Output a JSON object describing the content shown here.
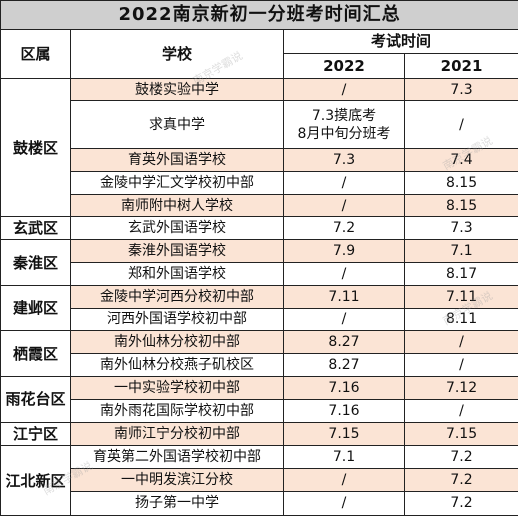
{
  "title": "2022南京新初一分班考时间汇总",
  "headers": {
    "district": "区属",
    "school": "学校",
    "exam_time": "考试时间",
    "year_2022": "2022",
    "year_2021": "2021"
  },
  "districts": {
    "gulou": "鼓楼区",
    "xuanwu": "玄武区",
    "qinhuai": "秦淮区",
    "jianye": "建邺区",
    "qixia": "栖霞区",
    "yuhuatai": "雨花台区",
    "jiangning": "江宁区",
    "jiangbei": "江北新区"
  },
  "rows": [
    {
      "school": "鼓楼实验中学",
      "y2022": "/",
      "y2021": "7.3"
    },
    {
      "school": "求真中学",
      "y2022": "7.3摸底考\n8月中旬分班考",
      "y2021": "/"
    },
    {
      "school": "育英外国语学校",
      "y2022": "7.3",
      "y2021": "7.4"
    },
    {
      "school": "金陵中学汇文学校初中部",
      "y2022": "/",
      "y2021": "8.15"
    },
    {
      "school": "南师附中树人学校",
      "y2022": "/",
      "y2021": "8.15"
    },
    {
      "school": "玄武外国语学校",
      "y2022": "7.2",
      "y2021": "7.3"
    },
    {
      "school": "秦淮外国语学校",
      "y2022": "7.9",
      "y2021": "7.1"
    },
    {
      "school": "郑和外国语学校",
      "y2022": "/",
      "y2021": "8.17"
    },
    {
      "school": "金陵中学河西分校初中部",
      "y2022": "7.11",
      "y2021": "7.11"
    },
    {
      "school": "河西外国语学校初中部",
      "y2022": "/",
      "y2021": "8.11"
    },
    {
      "school": "南外仙林分校初中部",
      "y2022": "8.27",
      "y2021": "/"
    },
    {
      "school": "南外仙林分校燕子矶校区",
      "y2022": "8.27",
      "y2021": "/"
    },
    {
      "school": "一中实验学校初中部",
      "y2022": "7.16",
      "y2021": "7.12"
    },
    {
      "school": "南外雨花国际学校初中部",
      "y2022": "7.16",
      "y2021": "/"
    },
    {
      "school": "南师江宁分校初中部",
      "y2022": "7.15",
      "y2021": "7.15"
    },
    {
      "school": "育英第二外国语学校初中部",
      "y2022": "7.1",
      "y2021": "7.2"
    },
    {
      "school": "一中明发滨江分校",
      "y2022": "/",
      "y2021": "7.2"
    },
    {
      "school": "扬子第一中学",
      "y2022": "/",
      "y2021": "7.2"
    }
  ],
  "watermark": "南京学霸说",
  "colors": {
    "title_bg": "#cfcfcf",
    "row_shade": "#fbe4d5",
    "border": "#222222"
  }
}
